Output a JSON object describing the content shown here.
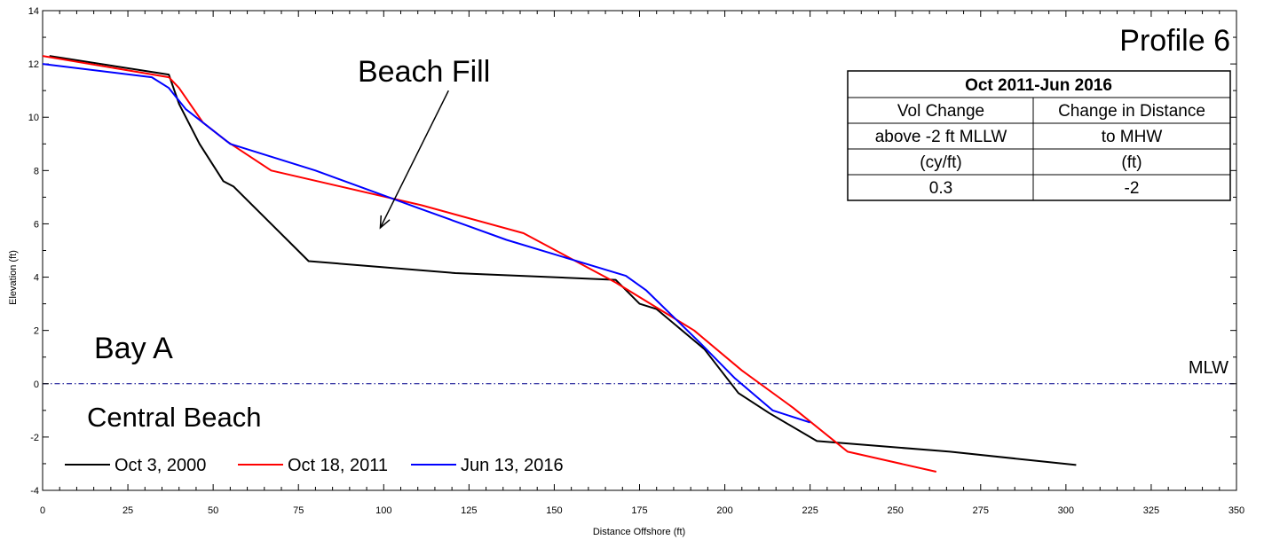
{
  "chart_data": {
    "type": "line",
    "xlabel": "Distance Offshore (ft)",
    "ylabel": "Elevation (ft)",
    "xlim": [
      0,
      350
    ],
    "ylim": [
      -4,
      14
    ],
    "x_ticks": [
      0,
      25,
      50,
      75,
      100,
      125,
      150,
      175,
      200,
      225,
      250,
      275,
      300,
      325,
      350
    ],
    "y_ticks": [
      -4,
      -2,
      0,
      2,
      4,
      6,
      8,
      10,
      12,
      14
    ],
    "grid": false,
    "legend_position": "bottom-left",
    "series": [
      {
        "name": "Oct 3, 2000",
        "color": "#000000",
        "points": [
          [
            2,
            12.3
          ],
          [
            37,
            11.6
          ],
          [
            40,
            10.5
          ],
          [
            46,
            9.0
          ],
          [
            53,
            7.6
          ],
          [
            56,
            7.4
          ],
          [
            78,
            4.6
          ],
          [
            121,
            4.15
          ],
          [
            168,
            3.9
          ],
          [
            175,
            3.0
          ],
          [
            180,
            2.8
          ],
          [
            194,
            1.3
          ],
          [
            204,
            -0.35
          ],
          [
            213,
            -1.1
          ],
          [
            227,
            -2.15
          ],
          [
            266,
            -2.55
          ],
          [
            303,
            -3.05
          ]
        ]
      },
      {
        "name": "Oct 18, 2011",
        "color": "#ff0000",
        "points": [
          [
            0,
            12.3
          ],
          [
            37,
            11.5
          ],
          [
            40,
            11.1
          ],
          [
            47,
            9.8
          ],
          [
            54,
            9.1
          ],
          [
            67,
            8.0
          ],
          [
            111,
            6.7
          ],
          [
            141,
            5.65
          ],
          [
            168,
            3.8
          ],
          [
            191,
            2.0
          ],
          [
            205,
            0.5
          ],
          [
            220,
            -0.9
          ],
          [
            236,
            -2.55
          ],
          [
            262,
            -3.3
          ]
        ]
      },
      {
        "name": "Jun 13, 2016",
        "color": "#0000ff",
        "points": [
          [
            0,
            12.0
          ],
          [
            32,
            11.5
          ],
          [
            37,
            11.1
          ],
          [
            42,
            10.3
          ],
          [
            55,
            9.0
          ],
          [
            80,
            8.0
          ],
          [
            110,
            6.6
          ],
          [
            136,
            5.4
          ],
          [
            171,
            4.05
          ],
          [
            177,
            3.5
          ],
          [
            193,
            1.5
          ],
          [
            203,
            0.2
          ],
          [
            214,
            -1.0
          ],
          [
            225,
            -1.45
          ]
        ]
      }
    ],
    "reference_line": {
      "label": "MLW",
      "y": 0,
      "color": "#00008b"
    },
    "annotations": {
      "profile": "Profile 6",
      "beach_fill": "Beach Fill",
      "bay": "Bay A",
      "beach": "Central Beach"
    },
    "arrow": {
      "from": [
        119,
        11.0
      ],
      "to": [
        99,
        5.85
      ]
    },
    "table": {
      "header": "Oct 2011-Jun 2016",
      "rows": [
        [
          "Vol Change",
          "Change in Distance"
        ],
        [
          "above -2 ft MLLW",
          "to MHW"
        ],
        [
          "(cy/ft)",
          "(ft)"
        ],
        [
          "0.3",
          "-2"
        ]
      ]
    }
  }
}
